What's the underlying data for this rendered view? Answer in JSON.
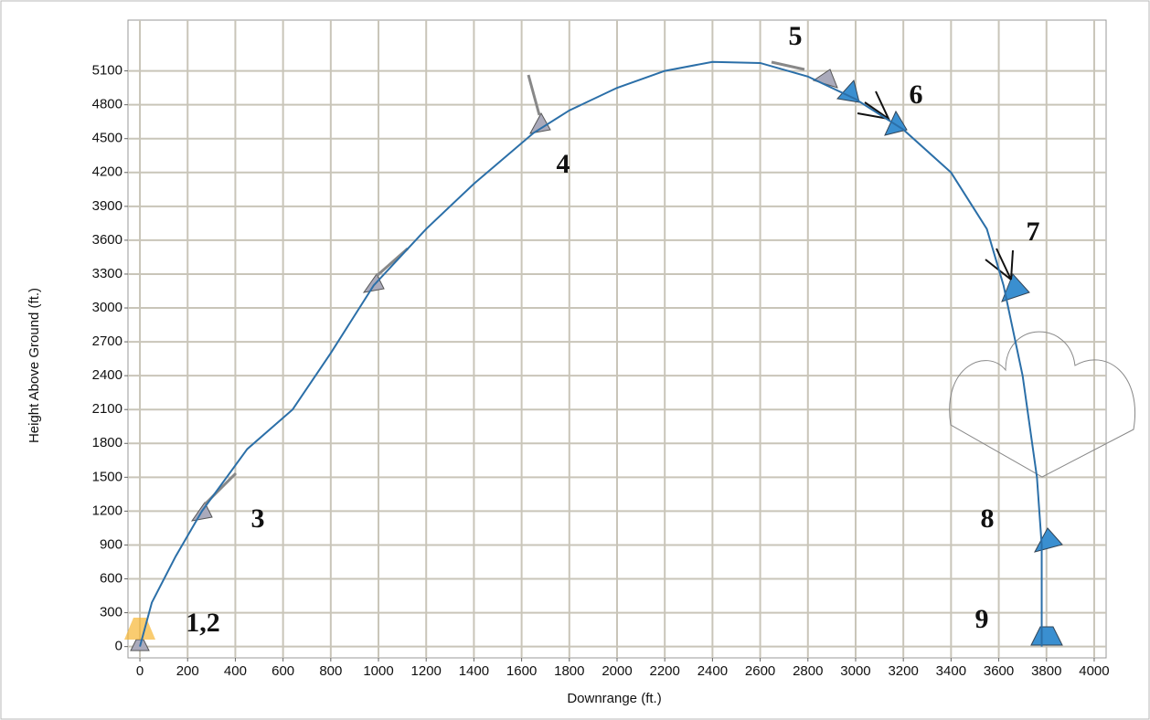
{
  "chart_data": {
    "type": "line",
    "xlabel": "Downrange (ft.)",
    "ylabel": "Height Above Ground (ft.)",
    "x": [
      0,
      50,
      150,
      260,
      450,
      640,
      800,
      980,
      1200,
      1400,
      1650,
      1800,
      2000,
      2200,
      2400,
      2600,
      2800,
      3000,
      3200,
      3400,
      3550,
      3620,
      3700,
      3760,
      3780,
      3780
    ],
    "series": [
      {
        "color": "#2b6fa8",
        "values": [
          0,
          390,
          800,
          1200,
          1750,
          2100,
          2600,
          3200,
          3700,
          4100,
          4550,
          4750,
          4950,
          5100,
          5180,
          5170,
          5050,
          4850,
          4580,
          4200,
          3700,
          3200,
          2400,
          1500,
          900,
          0
        ]
      }
    ],
    "xlim": [
      -50,
      4050
    ],
    "ylim": [
      -100,
      5550
    ],
    "xticks": [
      0,
      200,
      400,
      600,
      800,
      1000,
      1200,
      1400,
      1600,
      1800,
      2000,
      2200,
      2400,
      2600,
      2800,
      3000,
      3200,
      3400,
      3600,
      3800,
      4000
    ],
    "yticks": [
      0,
      300,
      600,
      900,
      1200,
      1500,
      1800,
      2100,
      2400,
      2700,
      3000,
      3300,
      3600,
      3900,
      4200,
      4500,
      4800,
      5100
    ],
    "grid": true,
    "annotations": [
      "1,2",
      "3",
      "4",
      "5",
      "6",
      "7",
      "8",
      "9"
    ]
  }
}
